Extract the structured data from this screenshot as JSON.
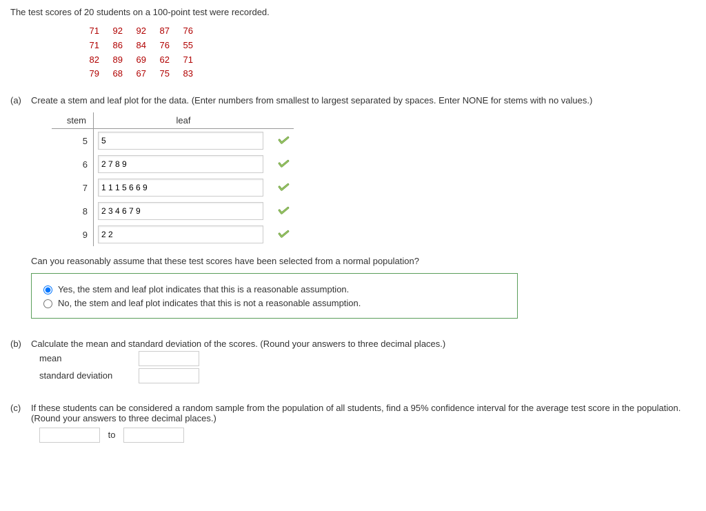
{
  "intro": "The test scores of 20 students on a 100-point test were recorded.",
  "data_rows": [
    [
      "71",
      "92",
      "92",
      "87",
      "76"
    ],
    [
      "71",
      "86",
      "84",
      "76",
      "55"
    ],
    [
      "82",
      "89",
      "69",
      "62",
      "71"
    ],
    [
      "79",
      "68",
      "67",
      "75",
      "83"
    ]
  ],
  "partA": {
    "label": "(a)",
    "prompt": "Create a stem and leaf plot for the data. (Enter numbers from smallest to largest separated by spaces. Enter NONE for stems with no values.)",
    "stem_header": "stem",
    "leaf_header": "leaf",
    "rows": [
      {
        "stem": "5",
        "leaf": "5"
      },
      {
        "stem": "6",
        "leaf": "2 7 8 9"
      },
      {
        "stem": "7",
        "leaf": "1 1 1 5 6 6 9"
      },
      {
        "stem": "8",
        "leaf": "2 3 4 6 7 9"
      },
      {
        "stem": "9",
        "leaf": "2 2"
      }
    ],
    "question2": "Can you reasonably assume that these test scores have been selected from a normal population?",
    "opt_yes": "Yes, the stem and leaf plot indicates that this is a reasonable assumption.",
    "opt_no": "No, the stem and leaf plot indicates that this is not a reasonable assumption."
  },
  "partB": {
    "label": "(b)",
    "prompt": "Calculate the mean and standard deviation of the scores. (Round your answers to three decimal places.)",
    "mean_label": "mean",
    "sd_label": "standard deviation",
    "mean_value": "",
    "sd_value": ""
  },
  "partC": {
    "label": "(c)",
    "prompt": "If these students can be considered a random sample from the population of all students, find a 95% confidence interval for the average test score in the population. (Round your answers to three decimal places.)",
    "to": "to",
    "lo": "",
    "hi": ""
  }
}
